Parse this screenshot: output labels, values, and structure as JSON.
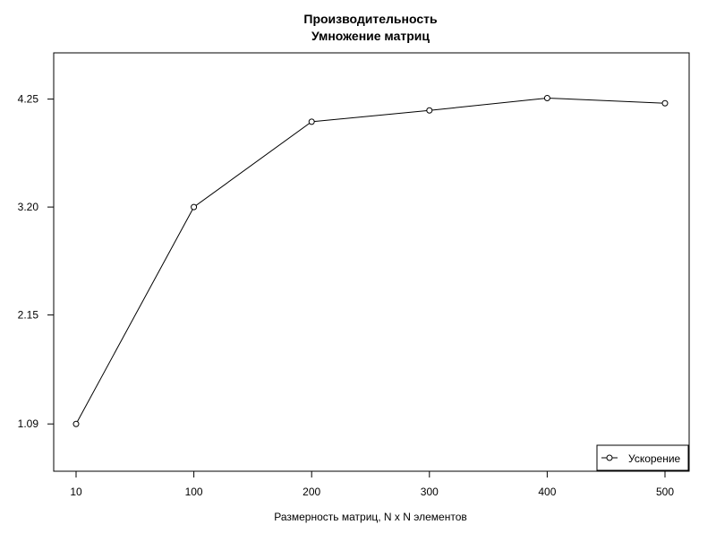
{
  "chart_data": {
    "type": "line",
    "title": "Производительность",
    "subtitle": "Умножение матриц",
    "xlabel": "Размерность матриц, N x N элементов",
    "ylabel": "",
    "x_tick_labels": [
      "10",
      "100",
      "200",
      "300",
      "400",
      "500"
    ],
    "y_tick_labels": [
      "1.09",
      "2.15",
      "3.20",
      "4.25"
    ],
    "y_ticks": [
      1.09,
      2.15,
      3.2,
      4.25
    ],
    "ylim": [
      0.63,
      4.7
    ],
    "grid": false,
    "legend_position": "bottom-right",
    "series": [
      {
        "name": "Ускорение",
        "color": "#000000",
        "marker": "open-circle",
        "x": [
          "10",
          "100",
          "200",
          "300",
          "400",
          "500"
        ],
        "values": [
          1.09,
          3.2,
          4.03,
          4.14,
          4.26,
          4.21
        ]
      }
    ]
  }
}
